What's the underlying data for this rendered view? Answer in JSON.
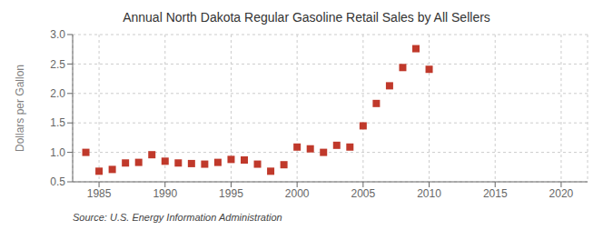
{
  "chart_data": {
    "type": "scatter",
    "title": "Annual North Dakota Regular Gasoline Retail Sales by All Sellers",
    "y_label": "Dollars per Gallon",
    "annotations": [
      "Source: U.S. Energy Information Administration"
    ],
    "x": [
      1984,
      1985,
      1986,
      1987,
      1988,
      1989,
      1990,
      1991,
      1992,
      1993,
      1994,
      1995,
      1996,
      1997,
      1998,
      1999,
      2000,
      2001,
      2002,
      2003,
      2004,
      2005,
      2006,
      2007,
      2008,
      2009,
      2010
    ],
    "values": [
      1.0,
      0.68,
      0.71,
      0.82,
      0.83,
      0.96,
      0.85,
      0.82,
      0.81,
      0.8,
      0.83,
      0.88,
      0.87,
      0.8,
      0.68,
      0.79,
      1.09,
      1.06,
      1.0,
      1.12,
      1.09,
      1.45,
      1.83,
      2.13,
      2.44,
      2.76,
      2.41
    ],
    "color": "#c0392b",
    "marker": "square",
    "xlim": [
      1983,
      2022
    ],
    "ylim": [
      0.5,
      3.0
    ],
    "xticks": [
      1985,
      1990,
      1995,
      2000,
      2005,
      2010,
      2015,
      2020
    ],
    "yticks": [
      0.5,
      {
        "value": 1,
        "label": "1.0"
      },
      1.5,
      {
        "value": 2,
        "label": "2.0"
      },
      2.5,
      {
        "value": 3,
        "label": "3.0"
      }
    ],
    "grid": true
  }
}
